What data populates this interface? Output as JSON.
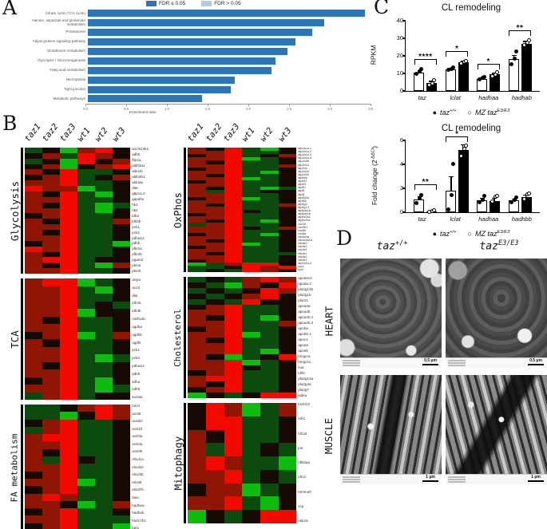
{
  "panels": {
    "a": "A",
    "b": "B",
    "c": "C",
    "d": "D"
  },
  "panel_a": {
    "legend": [
      {
        "label": "FDR ≤ 0.05",
        "color": "#2e75b6"
      },
      {
        "label": "FDR > 0.05",
        "color": "#b4c9e2"
      }
    ],
    "xlabel": "Enrichment ratio",
    "x_ticks": [
      "0.0",
      "0.5",
      "1.0",
      "1.5",
      "2.0",
      "2.5",
      "3.0",
      "3.5"
    ],
    "bar_color": "#3c7ab5"
  },
  "panel_b": {
    "col_headers": [
      "taz1",
      "taz2",
      "taz3",
      "wt1",
      "wt2",
      "wt3"
    ],
    "palette": {
      "R": "#f00a00",
      "r": "#8f1505",
      "K": "#150b04",
      "g": "#0c4a0e",
      "G": "#0ebc10"
    }
  },
  "panel_c": {
    "legend": {
      "wt_mark": "●",
      "wt_base": "taz",
      "wt_sup": "+/+",
      "mz_mark": "○",
      "mz_base": "MZ taz",
      "mz_sup": "E3/E3"
    },
    "ylabel2_pre": "Fold change (2",
    "ylabel2_sup": "-ΔΔCt",
    "ylabel2_post": ")"
  },
  "panel_d": {
    "col1_base": "taz",
    "col1_sup": "+/+",
    "col2_base": "taz",
    "col2_sup": "E3/E3",
    "row1": "HEART",
    "row2": "MUSCLE",
    "scale_heart": "0.5 μm",
    "scale_muscle": "1 μm"
  },
  "chart_data": [
    {
      "type": "bar",
      "orientation": "horizontal",
      "title": "",
      "categories": [
        "Citrate cycle (TCA cycle)",
        "Alanine, aspartate and glutamate metabolism",
        "Proteasome",
        "Adipocytokine signaling pathway",
        "Glutathione metabolism",
        "Glycolysis / Gluconeogenesis",
        "Fatty acid metabolism",
        "Necroptosis",
        "Tight junction",
        "Metabolic pathways"
      ],
      "values": [
        3.4,
        2.9,
        2.75,
        2.55,
        2.45,
        2.3,
        2.25,
        1.8,
        1.75,
        1.4
      ],
      "fdr": [
        "≤0.05",
        "≤0.05",
        "≤0.05",
        "≤0.05",
        "≤0.05",
        "≤0.05",
        "≤0.05",
        "≤0.05",
        "≤0.05",
        "≤0.05"
      ],
      "xlabel": "Enrichment ratio",
      "xlim": [
        0,
        3.5
      ],
      "legend": [
        "FDR ≤ 0.05",
        "FDR > 0.05"
      ],
      "legend_position": "top"
    },
    {
      "type": "bar",
      "title": "CL remodeling",
      "ylabel": "RPKM",
      "ylim": [
        0,
        40
      ],
      "yticks": [
        0,
        10,
        20,
        30,
        40
      ],
      "categories": [
        "taz",
        "lclat",
        "hadhaa",
        "hadhab"
      ],
      "series": [
        {
          "name": "taz+/+",
          "values": [
            10.5,
            12.5,
            7,
            18
          ]
        },
        {
          "name": "MZ tazE3/E3",
          "values": [
            4.5,
            16.5,
            9.5,
            27
          ]
        }
      ],
      "points": [
        [
          [
            9.5,
            10.5,
            12
          ],
          [
            11.5,
            12,
            13
          ],
          [
            6,
            7,
            7.5
          ],
          [
            15,
            18,
            22
          ]
        ],
        [
          [
            3.5,
            4.5,
            6
          ],
          [
            15.5,
            16.5,
            17
          ],
          [
            8.5,
            9.5,
            10.5
          ],
          [
            26,
            27.5,
            29
          ]
        ]
      ],
      "err": [
        [
          1.5,
          0.8,
          0.8,
          2.5
        ],
        [
          1.2,
          0.7,
          0.8,
          1.5
        ]
      ],
      "significance": [
        "****",
        "*",
        "*",
        "**"
      ],
      "sig_y": [
        15,
        19.5,
        12.5,
        31.5
      ]
    },
    {
      "type": "bar",
      "title": "CL remodeling",
      "ylabel": "Fold change (2^-ΔΔCt)",
      "ylim": [
        0,
        6
      ],
      "yticks": [
        0,
        2,
        4,
        6
      ],
      "categories": [
        "taz",
        "lclat",
        "hadhaa",
        "hadhbb"
      ],
      "series": [
        {
          "name": "taz+/+",
          "values": [
            1.05,
            1.8,
            1.0,
            1.0
          ]
        },
        {
          "name": "MZ tazE3/E3",
          "values": [
            0.07,
            5.2,
            0.95,
            1.25
          ]
        }
      ],
      "points": [
        [
          [
            0.7,
            1.1,
            1.4
          ],
          [
            0.15,
            1.4,
            4.0
          ],
          [
            0.8,
            1.0,
            1.3
          ],
          [
            0.8,
            1.0,
            1.2
          ]
        ],
        [
          [
            0.05,
            0.1,
            0.15
          ],
          [
            4.7,
            5.3,
            5.6
          ],
          [
            0.9,
            1.3,
            1.4
          ],
          [
            1.1,
            1.5,
            1.6
          ]
        ]
      ],
      "err": [
        [
          0.3,
          1.2,
          0.2,
          0.15
        ],
        [
          0.05,
          0.5,
          0.25,
          0.2
        ]
      ],
      "significance": [
        "**",
        "*",
        "",
        ""
      ],
      "sig_y": [
        1.9,
        5.9,
        null,
        null
      ]
    },
    {
      "type": "heatmap",
      "title": "Glycolysis",
      "side": "left",
      "columns": [
        "taz1",
        "taz2",
        "taz3",
        "wt1",
        "wt2",
        "wt3"
      ],
      "genes": [
        "wu:fb14k1",
        "adh5",
        "fbp1a",
        "aldh3a1",
        "aldocb",
        "aldh3b1",
        "aldoaa",
        "dlat",
        "g6pca.2",
        "gapdhs",
        "hk1",
        "hk2",
        "ldha",
        "ldhbb",
        "pck1",
        "pck2",
        "pdha1a",
        "pdhb",
        "pfkma",
        "pfkmb",
        "pgam2",
        "pkma",
        "pkmb"
      ],
      "rows": [
        "gKGrRK",
        "KrgRrK",
        "gKGRKr",
        "KrGKrR",
        "rKRggK",
        "KrRgKr",
        "rrRggK",
        "RrrGgK",
        "rKRgGK",
        "rrRggK",
        "rKRgGg",
        "rrRgGK",
        "KrRggK",
        "rKRggr",
        "rrRggK",
        "rKRggK",
        "rrRggK",
        "KrRggG",
        "RrRggK",
        "rKRggK",
        "rRRgKK",
        "rKRgGr",
        "rrRggK"
      ]
    },
    {
      "type": "heatmap",
      "title": "TCA",
      "side": "left",
      "columns": [
        "taz1",
        "taz2",
        "taz3",
        "wt1",
        "wt2",
        "wt3"
      ],
      "genes": [
        "aclya",
        "aco2",
        "dlst",
        "idh3a",
        "idh3b",
        "mdh1ab",
        "ogdha",
        "ogdhb",
        "ogdhl",
        "pck1",
        "pck2",
        "pdha1a",
        "pdhb",
        "sdha",
        "sdhb",
        "sucla2"
      ],
      "rows": [
        "rRRGgK",
        "rrRgGK",
        "rrRggK",
        "rrRgKg",
        "rrRGKK",
        "rKRggK",
        "rrRggK",
        "KrRGgr",
        "rKRggK",
        "rrRggK",
        "rrRgGg",
        "rKRggK",
        "rrRggK",
        "KrRgGK",
        "rrRgGg",
        "grRgKK"
      ]
    },
    {
      "type": "heatmap",
      "title": "FA metabolism",
      "side": "left",
      "columns": [
        "taz1",
        "taz2",
        "taz3",
        "wt1",
        "wt2",
        "wt3"
      ],
      "genes": [
        "mecr",
        "acot6",
        "acadvl",
        "acsl1b",
        "acsl3a",
        "acsl4a",
        "acsl4b",
        "elovl1a",
        "elovl1b",
        "elovl4b",
        "elovl6",
        "elovl7b",
        "fasn",
        "hadhaa",
        "hadhab",
        "hsd17b1",
        "ppt1"
      ],
      "rows": [
        "ggKrRr",
        "ggGKRr",
        "KrRggK",
        "grRggK",
        "rRRggK",
        "rrRggK",
        "rKRggK",
        "rgRKgK",
        "rrRggK",
        "KrRggK",
        "rrRGgK",
        "KrRggK",
        "rRrggK",
        "rrKGgr",
        "KrRggK",
        "rrRggg",
        "KrRggG"
      ]
    },
    {
      "type": "heatmap",
      "title": "OxPhos",
      "side": "right",
      "columns": [
        "taz1",
        "taz2",
        "taz3",
        "wt1",
        "wt2",
        "wt3"
      ],
      "genes": [
        "atp1a1a.1",
        "atp1a1a.2",
        "atp1a1a.3",
        "atp1a1a.5",
        "atp1a3b",
        "atp1b1b",
        "atp1b4",
        "atp2a2a",
        "atp2a2b",
        "atp5ab",
        "atp5e1",
        "atp5f1",
        "atp5h",
        "atp5i",
        "atp5j",
        "atp5g3a",
        "atp5ia",
        "atp5g2",
        "atp5g2.1",
        "atp6ap1a",
        "atp6ap1b",
        "atp6v0a1",
        "atp6v0ca",
        "cox10",
        "cox5b2",
        "cox6b",
        "cox8a",
        "ndufa4a",
        "ndufa4b1a",
        "ndufb2",
        "ndufs2",
        "ndufs4",
        "ndufv1",
        "ndufs3",
        "ndufv2",
        "atp1a1a.4",
        "cyc1",
        "cyt1"
      ],
      "rows": [
        "rKRgGK",
        "rrRggK",
        "KrRgKr",
        "rrRGgK",
        "rKRggK",
        "rrRggr",
        "KrRggK",
        "rrRgGK",
        "rKRggK",
        "rrRGgK",
        "KrRggK",
        "rrRggK",
        "rKRgGg",
        "rgRgKK",
        "rrRggK",
        "KrRGgK",
        "rrRggK",
        "rKRggr",
        "rrRggK",
        "rrRKgK",
        "KrRggK",
        "rrRggK",
        "rKRgGK",
        "grRggK",
        "rrRKgr",
        "rrRggK",
        "KrRgGK",
        "rrRggK",
        "rKRggK",
        "rrRGgK",
        "KrRggK",
        "rrRggK",
        "rKRggg",
        "rrRggK",
        "KrRggK",
        "GgrRRK",
        "ggKRrR",
        "gKgRrK"
      ]
    },
    {
      "type": "heatmap",
      "title": "Cholesterol",
      "side": "right",
      "columns": [
        "taz1",
        "taz2",
        "taz3",
        "wt1",
        "wt2",
        "wt3"
      ],
      "genes": [
        "apobec2",
        "apoda.2",
        "pla2g12b",
        "pla2g1b",
        "pla2r1",
        "apoa4a",
        "apoa4b",
        "apoa4b.1",
        "apoa4b.2",
        "apoba",
        "apobb.1",
        "apoc1",
        "apoea",
        "apoeb",
        "hmgcra",
        "hmgcs1",
        "lcat",
        "ldlrb",
        "pla2g12a",
        "pla2g4a",
        "pla2g7",
        "sqlea"
      ],
      "rows": [
        "gKgrRr",
        "KgGrKR",
        "gKgKRr",
        "KgKrRK",
        "gKgRKK",
        "KrRggK",
        "rrRggK",
        "rKRgGK",
        "rrRggr",
        "KrRggK",
        "rrRGgK",
        "rKRggK",
        "rrRggK",
        "rrRgGK",
        "rKGgKR",
        "rrRGgK",
        "rrRKgK",
        "KrRggK",
        "rRRggK",
        "rKRggK",
        "KrRggK",
        "GKgKRR"
      ]
    },
    {
      "type": "heatmap",
      "title": "Mitophagy",
      "side": "right",
      "columns": [
        "taz1",
        "taz2",
        "taz3",
        "wt1",
        "wt2",
        "wt3"
      ],
      "genes": [
        "bcl2l13",
        "e2f1",
        "hif1al",
        "jun",
        "nfkbiaa",
        "nlrx1",
        "tomm40",
        "vcp",
        "usp15"
      ],
      "rows": [
        "KRrGgr",
        "KRRggK",
        "rKRggK",
        "rgRgKg",
        "rRrggG",
        "rrRgKg",
        "KrrGgK",
        "rrRgGK",
        "GKgKRR"
      ]
    }
  ]
}
